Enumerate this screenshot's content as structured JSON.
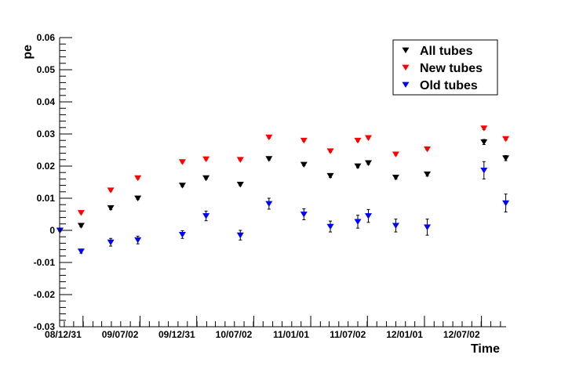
{
  "chart_data": {
    "type": "scatter",
    "title": "",
    "xlabel": "Time",
    "ylabel": "pe",
    "x_tick_labels": [
      "08/12/31",
      "09/07/02",
      "09/12/31",
      "10/07/02",
      "11/01/01",
      "11/07/02",
      "12/01/01",
      "12/07/02"
    ],
    "x_tick_dates": [
      "2008-12-31",
      "2009-07-02",
      "2009-12-31",
      "2010-07-02",
      "2011-01-01",
      "2011-07-02",
      "2012-01-01",
      "2012-07-02"
    ],
    "x_range": [
      "2008-10-17",
      "2012-09-19"
    ],
    "y_tick_labels": [
      "-0.03",
      "-0.02",
      "-0.01",
      "0",
      "0.01",
      "0.02",
      "0.03",
      "0.04",
      "0.05",
      "0.06"
    ],
    "ylim": [
      -0.03,
      0.06
    ],
    "grid": false,
    "legend_position": "top-right",
    "colors": {
      "all": "#000000",
      "new": "#ff0000",
      "old": "#0000ff"
    },
    "series": [
      {
        "name": "All tubes",
        "color": "#000000",
        "x": [
          "2008-10-18",
          "2008-12-25",
          "2009-03-30",
          "2009-06-25",
          "2009-11-15",
          "2010-01-30",
          "2010-05-20",
          "2010-08-20",
          "2010-12-10",
          "2011-03-05",
          "2011-06-01",
          "2011-07-05",
          "2011-10-01",
          "2012-01-10",
          "2012-07-10",
          "2012-09-18"
        ],
        "y": [
          0.0,
          0.0015,
          0.007,
          0.01,
          0.014,
          0.0163,
          0.0143,
          0.0223,
          0.0205,
          0.017,
          0.02,
          0.021,
          0.0165,
          0.0175,
          0.0275,
          0.0225
        ],
        "errors": [
          0.0001,
          0.0004,
          0.0005,
          0.0004,
          0.0004,
          0.0004,
          0.0004,
          0.0004,
          0.0004,
          0.0005,
          0.0005,
          0.0005,
          0.0005,
          0.0006,
          0.0008,
          0.0008
        ]
      },
      {
        "name": "New tubes",
        "color": "#ff0000",
        "x": [
          "2008-12-25",
          "2009-03-30",
          "2009-06-25",
          "2009-11-15",
          "2010-01-30",
          "2010-05-20",
          "2010-08-20",
          "2010-12-10",
          "2011-03-05",
          "2011-06-01",
          "2011-07-05",
          "2011-10-01",
          "2012-01-10",
          "2012-07-10",
          "2012-09-18"
        ],
        "y": [
          0.0055,
          0.0125,
          0.0163,
          0.0213,
          0.0222,
          0.022,
          0.029,
          0.028,
          0.0247,
          0.028,
          0.0288,
          0.0237,
          0.0253,
          0.0318,
          0.0285
        ],
        "errors": [
          0.0003,
          0.0003,
          0.0003,
          0.0003,
          0.0003,
          0.0003,
          0.0003,
          0.0003,
          0.0003,
          0.0003,
          0.0003,
          0.0003,
          0.0003,
          0.0004,
          0.0004
        ]
      },
      {
        "name": "Old tubes",
        "color": "#0000ff",
        "x": [
          "2008-10-18",
          "2008-12-25",
          "2009-03-30",
          "2009-06-25",
          "2009-11-15",
          "2010-01-30",
          "2010-05-20",
          "2010-08-20",
          "2010-12-10",
          "2011-03-05",
          "2011-06-01",
          "2011-07-05",
          "2011-10-01",
          "2012-01-10",
          "2012-07-10",
          "2012-09-18"
        ],
        "y": [
          0.0,
          -0.0065,
          -0.0037,
          -0.003,
          -0.0013,
          0.0045,
          -0.0015,
          0.0083,
          0.005,
          0.0012,
          0.0027,
          0.0045,
          0.0015,
          0.001,
          0.0187,
          0.0085
        ],
        "errors": [
          0.0003,
          0.0006,
          0.0012,
          0.0012,
          0.0012,
          0.0015,
          0.0015,
          0.0017,
          0.0017,
          0.0017,
          0.002,
          0.002,
          0.002,
          0.0025,
          0.0027,
          0.0028
        ]
      }
    ]
  }
}
